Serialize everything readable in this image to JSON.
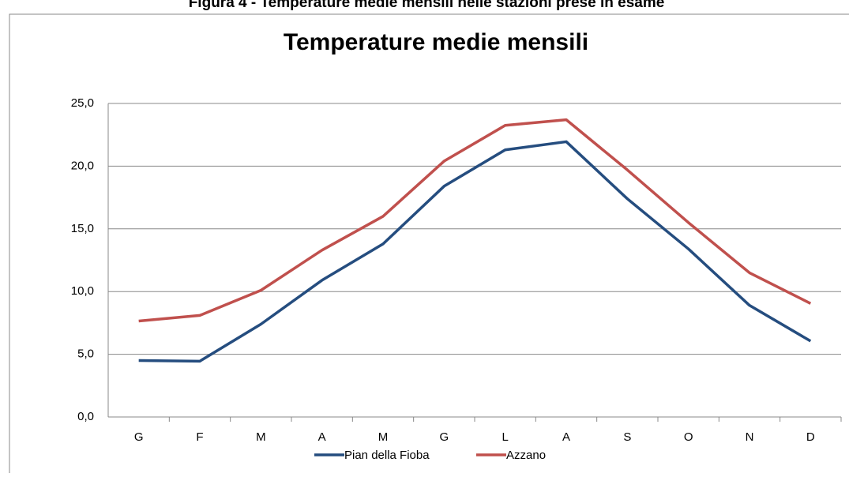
{
  "caption": "Figura 4 - Temperature medie mensili nelle stazioni prese in esame",
  "chart_data": {
    "type": "line",
    "title": "Temperature medie mensili",
    "categories": [
      "G",
      "F",
      "M",
      "A",
      "M",
      "G",
      "L",
      "A",
      "S",
      "O",
      "N",
      "D"
    ],
    "series": [
      {
        "name": "Pian della Fioba",
        "color": "#254d7f",
        "values": [
          4.5,
          4.45,
          7.4,
          10.9,
          13.8,
          18.4,
          21.3,
          21.95,
          17.4,
          13.4,
          8.9,
          6.05
        ]
      },
      {
        "name": "Azzano",
        "color": "#c0504d",
        "values": [
          7.65,
          8.1,
          10.1,
          13.3,
          16.0,
          20.4,
          23.25,
          23.7,
          19.7,
          15.5,
          11.5,
          9.05
        ]
      }
    ],
    "ylim": [
      0,
      25
    ],
    "yticks": [
      {
        "value": 0,
        "label": "0,0"
      },
      {
        "value": 5,
        "label": "5,0"
      },
      {
        "value": 10,
        "label": "10,0"
      },
      {
        "value": 15,
        "label": "15,0"
      },
      {
        "value": 20,
        "label": "20,0"
      },
      {
        "value": 25,
        "label": "25,0"
      }
    ],
    "grid": true,
    "legend": "bottom"
  }
}
